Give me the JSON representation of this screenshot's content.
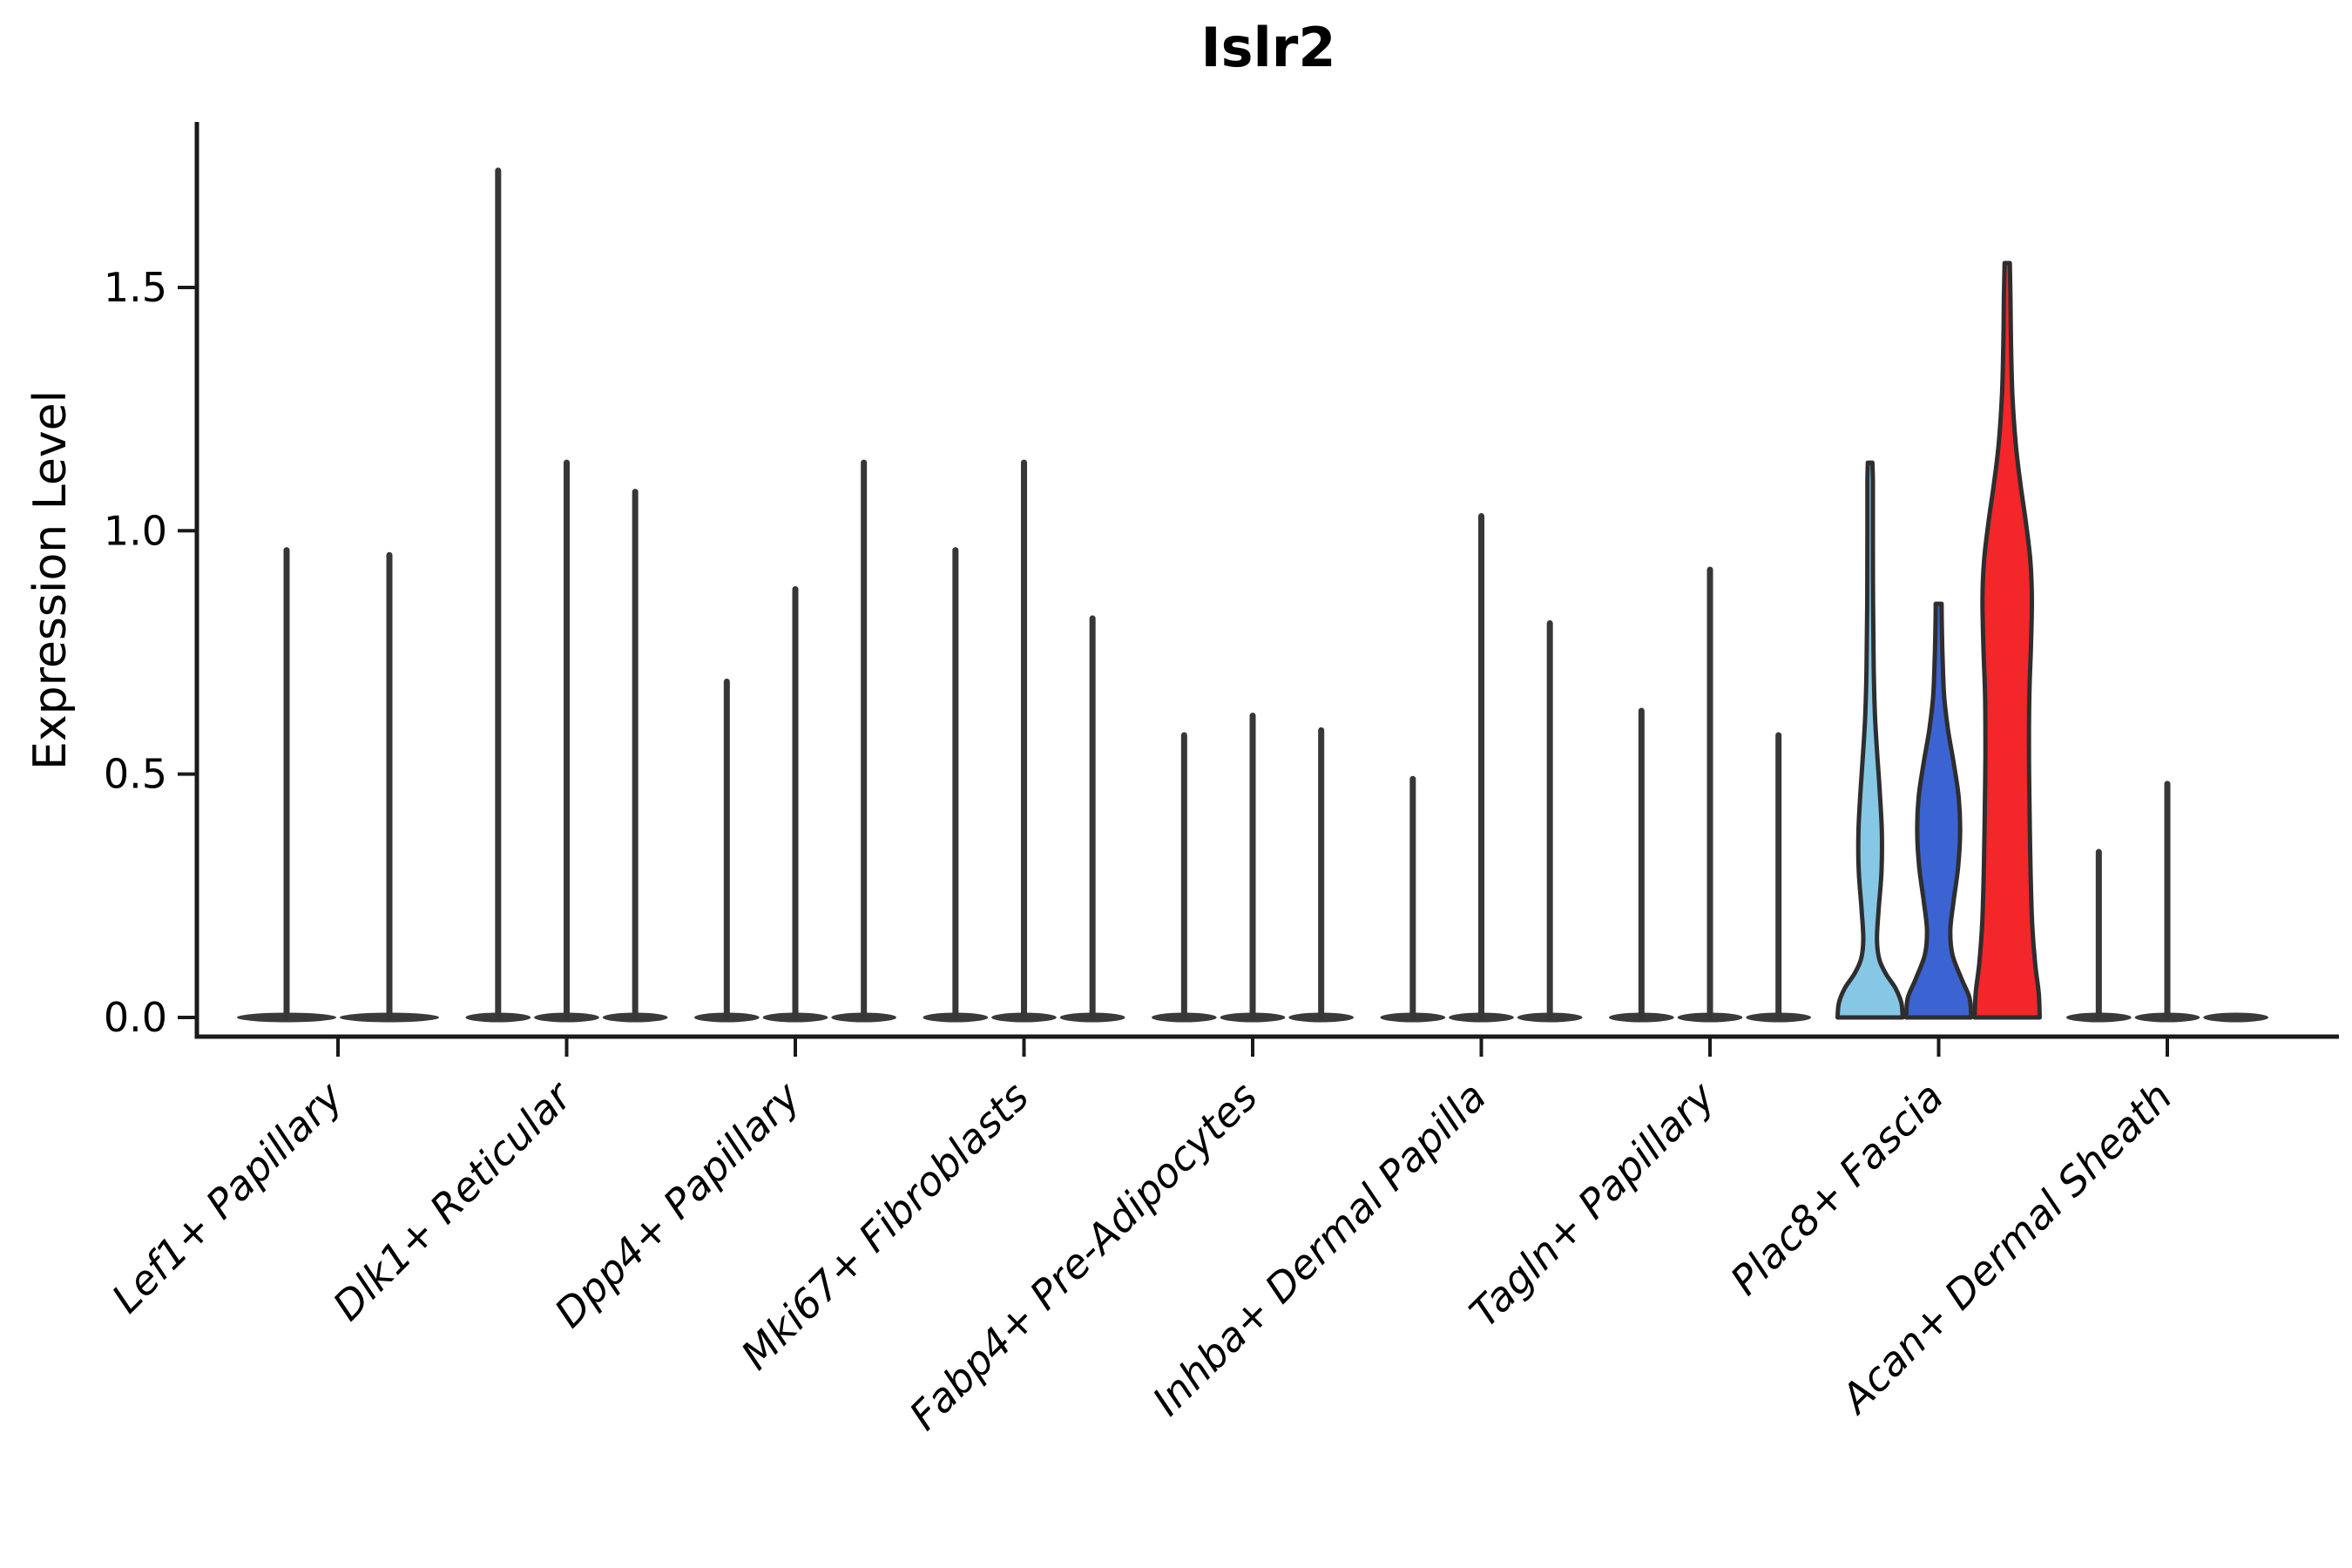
{
  "figure": {
    "title": "Islr2",
    "ylabel": "Expression Level"
  },
  "chart_data": {
    "type": "violin",
    "title": "Islr2",
    "xlabel": "",
    "ylabel": "Expression Level",
    "ylim": [
      -0.04,
      1.84
    ],
    "grid": false,
    "legend_position": "none",
    "yticks": [
      {
        "value": 0.0,
        "label": "0.0"
      },
      {
        "value": 0.5,
        "label": "0.5"
      },
      {
        "value": 1.0,
        "label": "1.0"
      },
      {
        "value": 1.5,
        "label": "1.5"
      }
    ],
    "categories": [
      "Lef1+ Papillary",
      "Dlk1+ Reticular",
      "Dpp4+ Papillary",
      "Mki67+ Fibroblasts",
      "Fabp4+ Pre-Adipocytes",
      "Inhba+ Dermal Papilla",
      "Tagln+ Papillary",
      "Plac8+ Fascia",
      "Acan+ Dermal Sheath"
    ],
    "colors": {
      "axis": "#1a1a1a",
      "spike": "#373737",
      "base_lens": "#3a3a3a",
      "violin_outline": "#2e2e2e",
      "plac8_split1": "#87C7E6",
      "plac8_split2": "#3B63D2",
      "plac8_split3": "#F32629"
    },
    "groups": [
      {
        "category": "Lef1+ Papillary",
        "violins": [
          {
            "max": 0.96
          },
          {
            "max": 0.95
          }
        ]
      },
      {
        "category": "Dlk1+ Reticular",
        "violins": [
          {
            "max": 1.74
          },
          {
            "max": 1.14
          },
          {
            "max": 1.08
          }
        ]
      },
      {
        "category": "Dpp4+ Papillary",
        "violins": [
          {
            "max": 0.69
          },
          {
            "max": 0.88
          },
          {
            "max": 1.14
          }
        ]
      },
      {
        "category": "Mki67+ Fibroblasts",
        "violins": [
          {
            "max": 0.96
          },
          {
            "max": 1.14
          },
          {
            "max": 0.82
          }
        ]
      },
      {
        "category": "Fabp4+ Pre-Adipocytes",
        "violins": [
          {
            "max": 0.58
          },
          {
            "max": 0.62
          },
          {
            "max": 0.59
          }
        ]
      },
      {
        "category": "Inhba+ Dermal Papilla",
        "violins": [
          {
            "max": 0.49
          },
          {
            "max": 1.03
          },
          {
            "max": 0.81
          }
        ]
      },
      {
        "category": "Tagln+ Papillary",
        "violins": [
          {
            "max": 0.63
          },
          {
            "max": 0.92
          },
          {
            "max": 0.58
          }
        ]
      },
      {
        "category": "Plac8+ Fascia",
        "violins": [
          {
            "max": 1.14,
            "fill": "#87C7E6",
            "profile": [
              [
                0.0,
                1.0
              ],
              [
                0.03,
                0.96
              ],
              [
                0.06,
                0.78
              ],
              [
                0.09,
                0.48
              ],
              [
                0.12,
                0.28
              ],
              [
                0.16,
                0.21
              ],
              [
                0.22,
                0.26
              ],
              [
                0.3,
                0.35
              ],
              [
                0.38,
                0.36
              ],
              [
                0.46,
                0.3
              ],
              [
                0.54,
                0.22
              ],
              [
                0.62,
                0.15
              ],
              [
                0.72,
                0.11
              ],
              [
                0.85,
                0.09
              ],
              [
                1.0,
                0.085
              ],
              [
                1.1,
                0.085
              ],
              [
                1.14,
                0.07
              ]
            ]
          },
          {
            "max": 0.85,
            "fill": "#3B63D2",
            "profile": [
              [
                0.0,
                1.0
              ],
              [
                0.04,
                0.95
              ],
              [
                0.08,
                0.7
              ],
              [
                0.13,
                0.42
              ],
              [
                0.18,
                0.36
              ],
              [
                0.24,
                0.46
              ],
              [
                0.31,
                0.6
              ],
              [
                0.38,
                0.66
              ],
              [
                0.45,
                0.62
              ],
              [
                0.52,
                0.47
              ],
              [
                0.59,
                0.29
              ],
              [
                0.66,
                0.17
              ],
              [
                0.74,
                0.12
              ],
              [
                0.8,
                0.1
              ],
              [
                0.85,
                0.09
              ]
            ]
          },
          {
            "max": 1.55,
            "fill": "#F32629",
            "profile": [
              [
                0.0,
                1.0
              ],
              [
                0.05,
                0.97
              ],
              [
                0.11,
                0.86
              ],
              [
                0.19,
                0.77
              ],
              [
                0.3,
                0.72
              ],
              [
                0.42,
                0.69
              ],
              [
                0.54,
                0.67
              ],
              [
                0.66,
                0.68
              ],
              [
                0.76,
                0.73
              ],
              [
                0.86,
                0.76
              ],
              [
                0.94,
                0.71
              ],
              [
                1.02,
                0.57
              ],
              [
                1.1,
                0.4
              ],
              [
                1.18,
                0.26
              ],
              [
                1.28,
                0.16
              ],
              [
                1.38,
                0.12
              ],
              [
                1.48,
                0.1
              ],
              [
                1.55,
                0.08
              ]
            ]
          }
        ]
      },
      {
        "category": "Acan+ Dermal Sheath",
        "violins": [
          {
            "max": 0.34
          },
          {
            "max": 0.48
          },
          {
            "max": 0.0
          }
        ]
      }
    ]
  }
}
